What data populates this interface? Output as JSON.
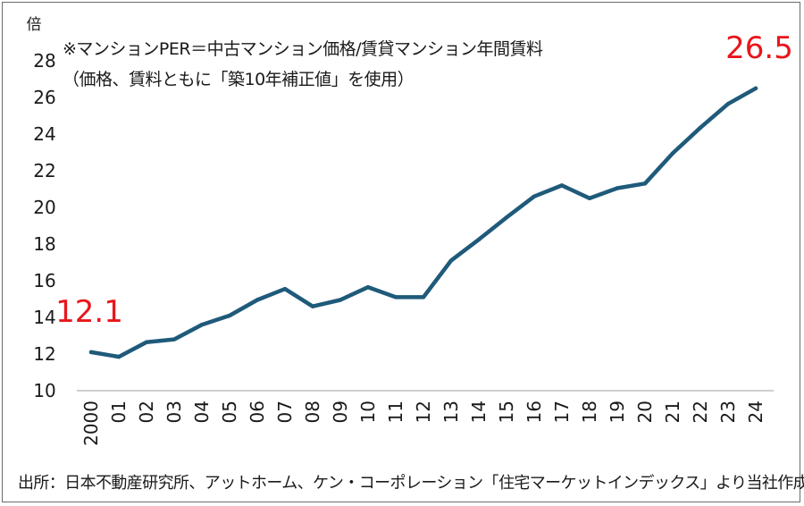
{
  "chart_data": {
    "type": "line",
    "unit_label": "倍",
    "note_line1": "※マンションPER＝中古マンション価格/賃貸マンション年間賃料",
    "note_line2": "（価格、賃料ともに「築10年補正値」を使用）",
    "source": "出所：日本不動産研究所、アットホーム、ケン・コーポレーション「住宅マーケットインデックス」より当社作成",
    "categories": [
      "2000",
      "01",
      "02",
      "03",
      "04",
      "05",
      "06",
      "07",
      "08",
      "09",
      "10",
      "11",
      "12",
      "13",
      "14",
      "15",
      "16",
      "17",
      "18",
      "19",
      "20",
      "21",
      "22",
      "23",
      "24"
    ],
    "series": [
      {
        "name": "マンションPER",
        "color": "#1f5a7a",
        "values": [
          12.1,
          11.85,
          12.65,
          12.8,
          13.6,
          14.1,
          14.95,
          15.55,
          14.6,
          14.95,
          15.65,
          15.1,
          15.1,
          17.1,
          18.25,
          19.45,
          20.6,
          21.2,
          20.5,
          21.05,
          21.3,
          22.95,
          24.35,
          25.65,
          26.5
        ]
      }
    ],
    "ylim": [
      10,
      28
    ],
    "yticks": [
      "10",
      "12",
      "14",
      "16",
      "18",
      "20",
      "22",
      "24",
      "26",
      "28"
    ],
    "annotations": [
      {
        "text": "12.1",
        "category_index": 0,
        "color": "#e8161b"
      },
      {
        "text": "26.5",
        "category_index": 24,
        "color": "#e8161b"
      }
    ]
  }
}
